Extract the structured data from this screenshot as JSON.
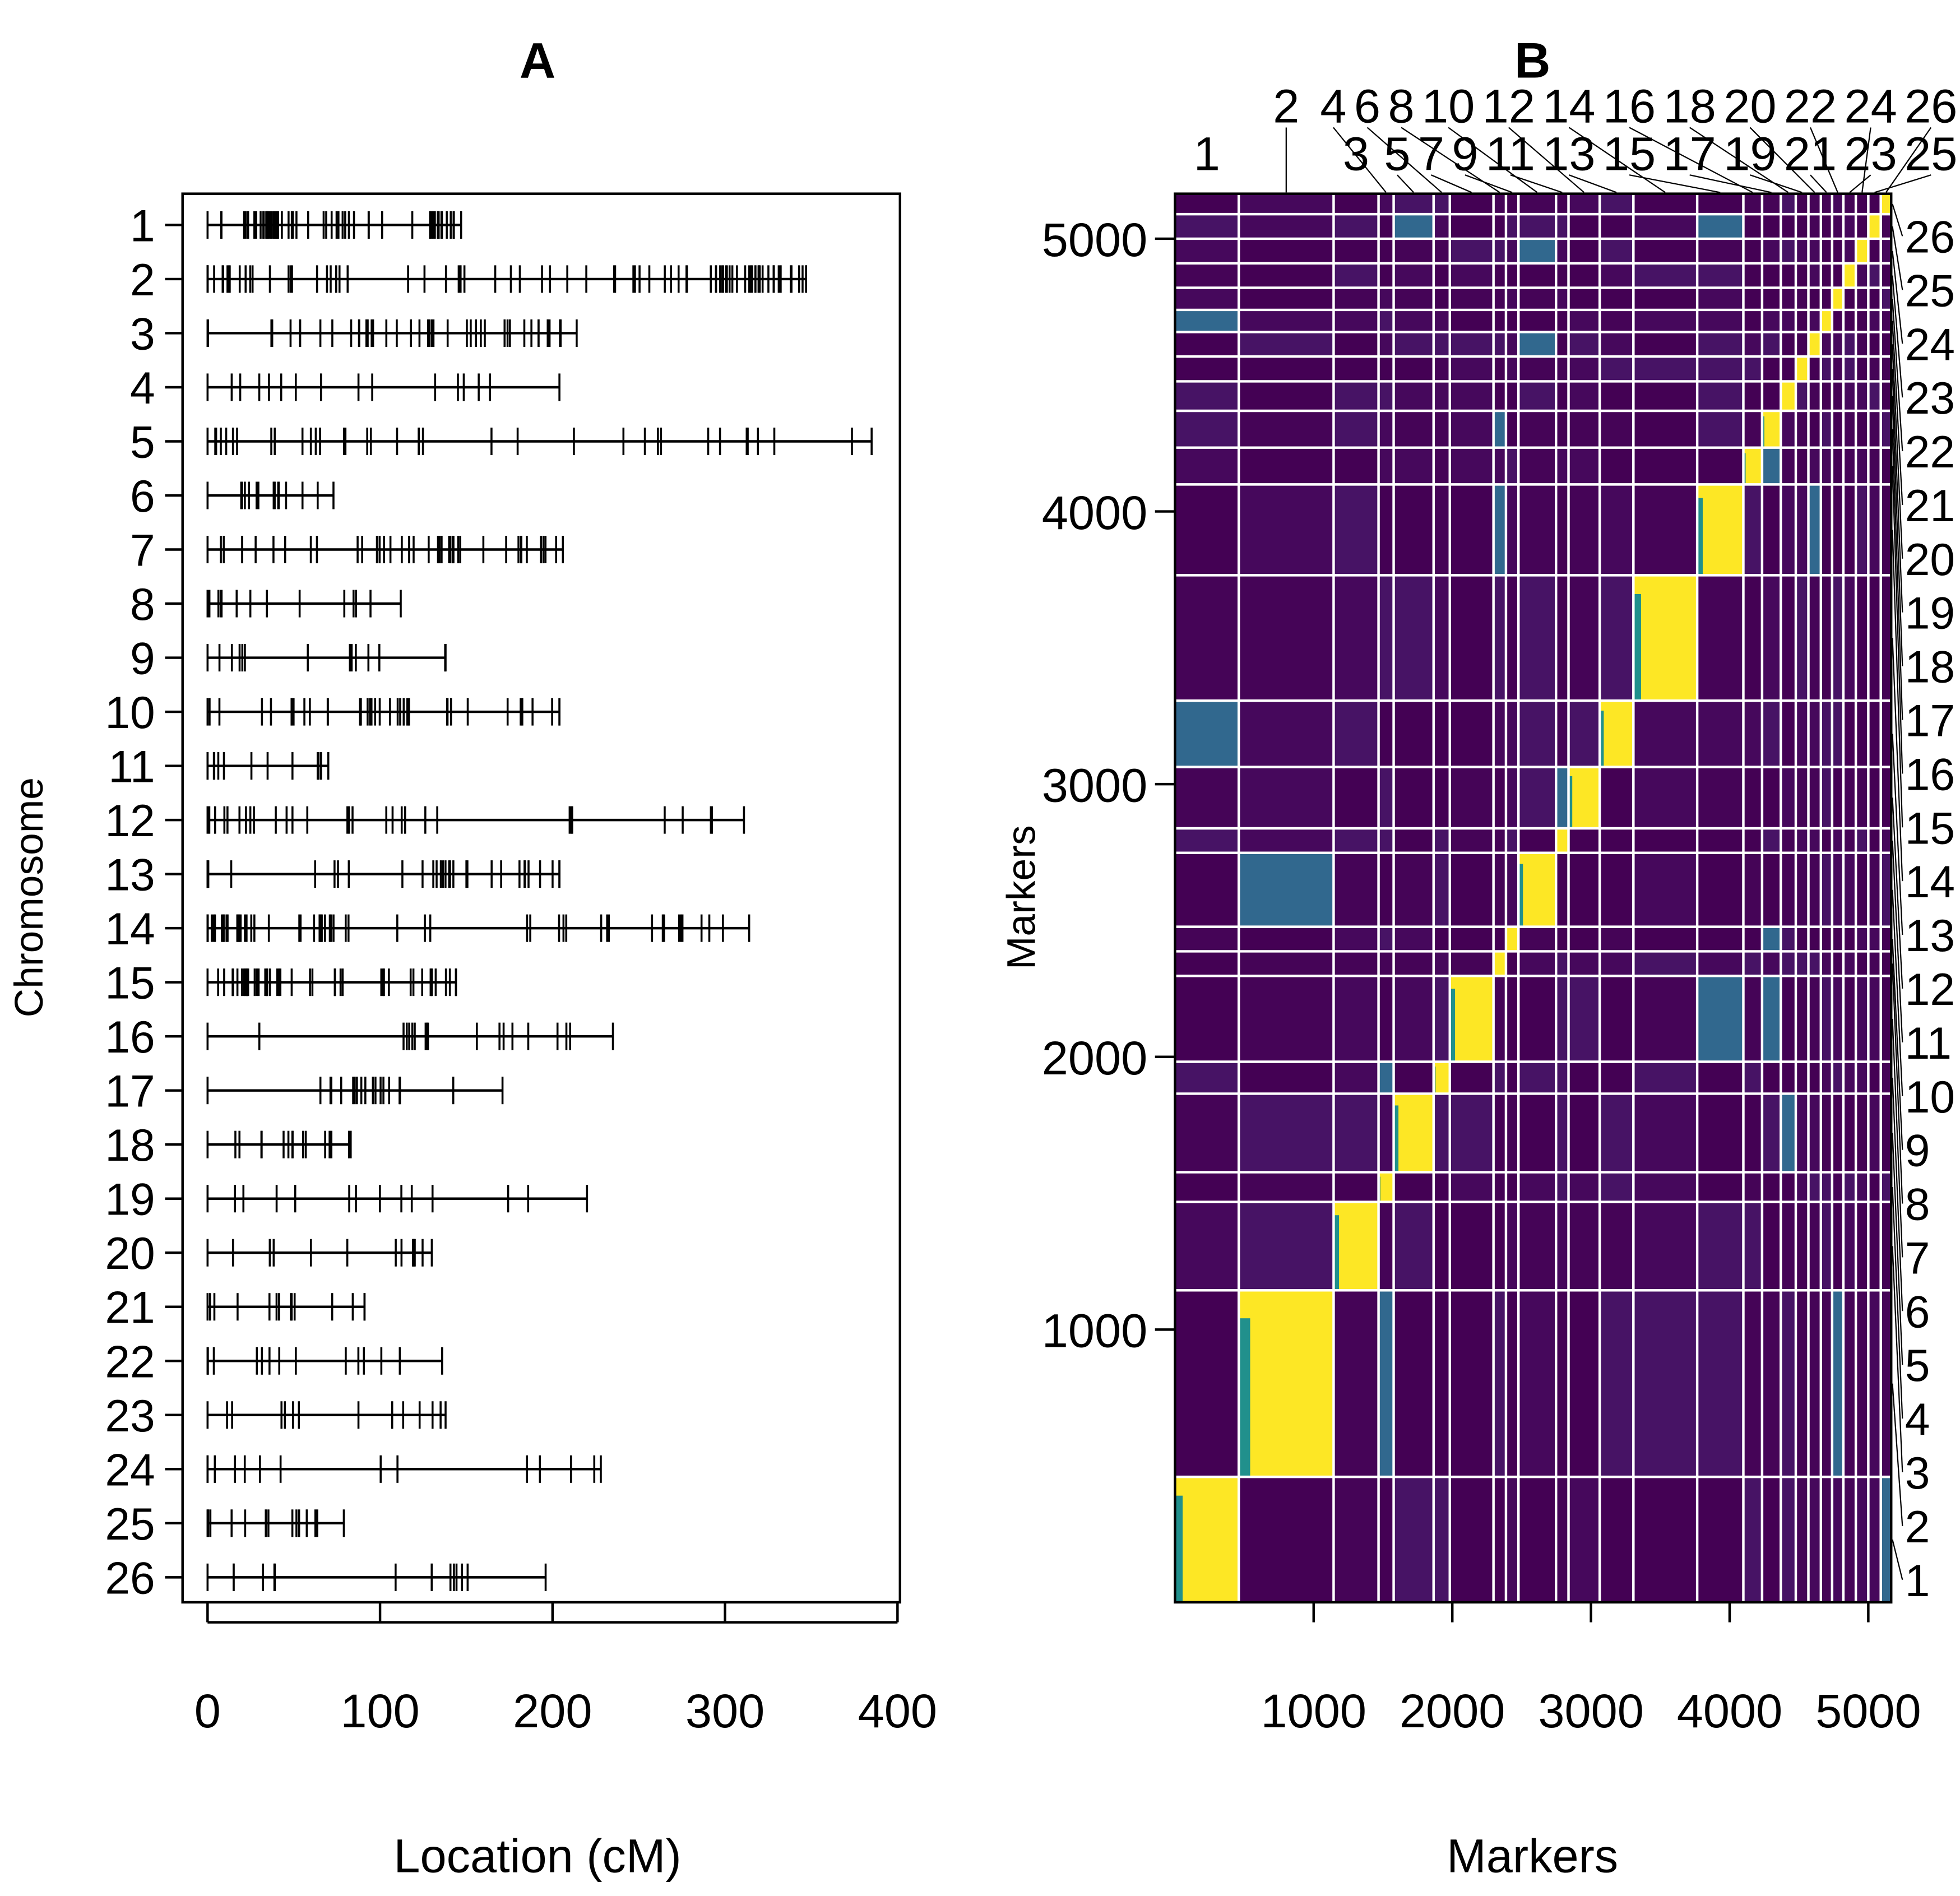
{
  "chart_data": [
    {
      "type": "genetic-map",
      "title": "A",
      "xlabel": "Location (cM)",
      "ylabel": "Chromosome",
      "xlim": [
        0,
        400
      ],
      "xticks": [
        0,
        100,
        200,
        300,
        400
      ],
      "chromosomes": [
        "1",
        "2",
        "3",
        "4",
        "5",
        "6",
        "7",
        "8",
        "9",
        "10",
        "11",
        "12",
        "13",
        "14",
        "15",
        "16",
        "17",
        "18",
        "19",
        "20",
        "21",
        "22",
        "23",
        "24",
        "25",
        "26"
      ],
      "lengths_cM": [
        147,
        347,
        214,
        204,
        385,
        73,
        206,
        112,
        138,
        204,
        70,
        311,
        204,
        314,
        144,
        235,
        171,
        83,
        220,
        130,
        91,
        136,
        138,
        228,
        79,
        196
      ]
    },
    {
      "type": "heatmap",
      "title": "B",
      "xlabel": "Markers",
      "ylabel": "Markers",
      "xticks": [
        1000,
        2000,
        3000,
        4000,
        5000
      ],
      "yticks": [
        1000,
        2000,
        3000,
        4000,
        5000
      ],
      "total_markers": 5165,
      "chromosomes": [
        "1",
        "2",
        "3",
        "4",
        "5",
        "6",
        "7",
        "8",
        "9",
        "10",
        "11",
        "12",
        "13",
        "14",
        "15",
        "16",
        "17",
        "18",
        "19",
        "20",
        "21",
        "22",
        "23",
        "24",
        "25",
        "26"
      ],
      "marker_counts": [
        460,
        684,
        324,
        109,
        288,
        117,
        315,
        90,
        90,
        271,
        90,
        225,
        243,
        460,
        333,
        135,
        135,
        108,
        91,
        90,
        81,
        81,
        90,
        90,
        90,
        75
      ],
      "colorscale": {
        "low": "#440154",
        "mid": "#21908C",
        "high": "#FDE725"
      },
      "diagonal_value": "high",
      "offdiagonal_value": "low"
    }
  ]
}
